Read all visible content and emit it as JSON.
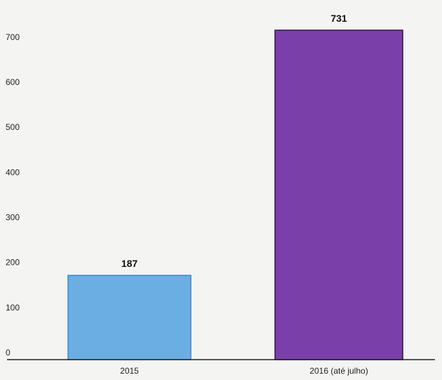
{
  "chart_data": {
    "type": "bar",
    "title": "",
    "xlabel": "",
    "ylabel": "",
    "categories": [
      "2015",
      "2016 (até julho)"
    ],
    "values": [
      187,
      731
    ],
    "value_labels": [
      "187",
      "731"
    ],
    "ylim": [
      0,
      760
    ],
    "yticks": [
      0,
      100,
      200,
      300,
      400,
      500,
      600,
      700
    ],
    "ytick_labels": [
      "0",
      "100",
      "200",
      "300",
      "400",
      "500",
      "600",
      "700"
    ],
    "grid": false,
    "legend": "none",
    "colors": [
      "#6aaee4",
      "#7a3fa8"
    ],
    "edge_colors": [
      "#3f86c9",
      "#2f1548"
    ]
  }
}
